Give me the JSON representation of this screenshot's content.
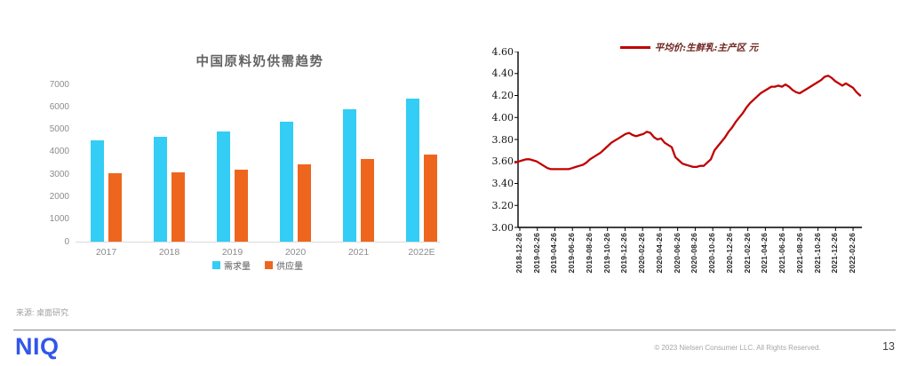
{
  "page": {
    "source_note": "来源: 桌面研究",
    "logo_text": "NIQ",
    "copyright": "© 2023 Nielsen Consumer LLC. All Rights Reserved.",
    "page_number": "13"
  },
  "colors": {
    "demand": "#33CDF5",
    "supply": "#EE661E",
    "price_line": "#C00000",
    "logo_blue": "#3157E8"
  },
  "chart_data": [
    {
      "type": "bar",
      "title": "中国原料奶供需趋势",
      "categories": [
        "2017",
        "2018",
        "2019",
        "2020",
        "2021",
        "2022E"
      ],
      "series": [
        {
          "name": "需求量",
          "color": "#33CDF5",
          "values": [
            4500,
            4670,
            4920,
            5320,
            5900,
            6380
          ]
        },
        {
          "name": "供应量",
          "color": "#EE661E",
          "values": [
            3050,
            3080,
            3210,
            3450,
            3670,
            3880
          ]
        }
      ],
      "y_ticks": [
        0,
        1000,
        2000,
        3000,
        4000,
        5000,
        6000,
        7000
      ],
      "ylim": [
        0,
        7000
      ],
      "grid": false,
      "legend_position": "bottom"
    },
    {
      "type": "line",
      "legend": "平均价:生鲜乳:主产区  元",
      "ylabel": "",
      "y_ticks": [
        "4.60",
        "4.40",
        "4.20",
        "4.00",
        "3.80",
        "3.60",
        "3.40",
        "3.20",
        "3.00"
      ],
      "ylim": [
        3.0,
        4.6
      ],
      "grid": false,
      "legend_position": "top",
      "x_labels": [
        "2018-12-26",
        "2019-02-26",
        "2019-04-26",
        "2019-06-26",
        "2019-08-26",
        "2019-10-26",
        "2019-12-26",
        "2020-02-26",
        "2020-04-26",
        "2020-06-26",
        "2020-08-26",
        "2020-10-26",
        "2020-12-26",
        "2021-02-26",
        "2021-04-26",
        "2021-06-26",
        "2021-08-26",
        "2021-10-26",
        "2021-12-26",
        "2022-02-26"
      ],
      "values": [
        3.59,
        3.6,
        3.61,
        3.62,
        3.62,
        3.61,
        3.6,
        3.58,
        3.56,
        3.54,
        3.53,
        3.53,
        3.53,
        3.53,
        3.53,
        3.53,
        3.54,
        3.55,
        3.56,
        3.57,
        3.59,
        3.62,
        3.64,
        3.66,
        3.68,
        3.71,
        3.74,
        3.77,
        3.79,
        3.81,
        3.83,
        3.85,
        3.86,
        3.84,
        3.83,
        3.84,
        3.85,
        3.87,
        3.86,
        3.82,
        3.8,
        3.81,
        3.77,
        3.75,
        3.73,
        3.64,
        3.61,
        3.58,
        3.57,
        3.56,
        3.55,
        3.55,
        3.56,
        3.56,
        3.59,
        3.62,
        3.7,
        3.74,
        3.78,
        3.82,
        3.87,
        3.91,
        3.96,
        4.0,
        4.04,
        4.09,
        4.13,
        4.16,
        4.19,
        4.22,
        4.24,
        4.26,
        4.28,
        4.28,
        4.29,
        4.28,
        4.3,
        4.28,
        4.25,
        4.23,
        4.22,
        4.24,
        4.26,
        4.28,
        4.3,
        4.32,
        4.34,
        4.37,
        4.38,
        4.36,
        4.33,
        4.31,
        4.29,
        4.31,
        4.29,
        4.27,
        4.23,
        4.2
      ]
    }
  ]
}
